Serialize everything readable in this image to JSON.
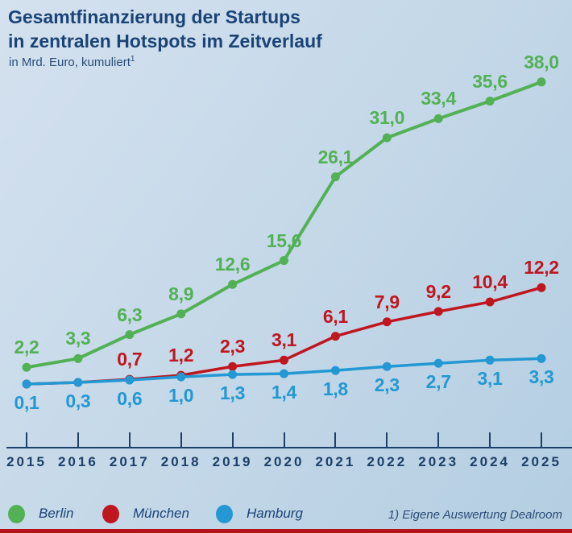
{
  "header": {
    "title": "Gesamtfinanzierung der Startups\nin zentralen Hotspots im Zeitverlauf",
    "subtitle": "in Mrd. Euro, kumuliert",
    "subtitle_superscript": "1"
  },
  "chart_data": {
    "type": "line",
    "title": "Gesamtfinanzierung der Startups in zentralen Hotspots im Zeitverlauf",
    "unit": "Mrd. Euro, kumuliert",
    "x": [
      "2015",
      "2016",
      "2017",
      "2018",
      "2019",
      "2020",
      "2021",
      "2022",
      "2023",
      "2024",
      "2025"
    ],
    "ylim": [
      0,
      40
    ],
    "grid": false,
    "legend_position": "bottom",
    "series": [
      {
        "name": "Berlin",
        "color": "#53b155",
        "values": [
          2.2,
          3.3,
          6.3,
          8.9,
          12.6,
          15.6,
          26.1,
          31.0,
          33.4,
          35.6,
          38.0
        ],
        "labels": [
          "2,2",
          "3,3",
          "6,3",
          "8,9",
          "12,6",
          "15,6",
          "26,1",
          "31,0",
          "33,4",
          "35,6",
          "38,0"
        ],
        "label_position": "above"
      },
      {
        "name": "München",
        "color": "#c0161f",
        "values": [
          0.1,
          0.3,
          0.7,
          1.2,
          2.3,
          3.1,
          6.1,
          7.9,
          9.2,
          10.4,
          12.2
        ],
        "labels": [
          "",
          "",
          "0,7",
          "1,2",
          "2,3",
          "3,1",
          "6,1",
          "7,9",
          "9,2",
          "10,4",
          "12,2"
        ],
        "label_position": "above"
      },
      {
        "name": "Hamburg",
        "color": "#2398d3",
        "values": [
          0.1,
          0.3,
          0.6,
          1.0,
          1.3,
          1.4,
          1.8,
          2.3,
          2.7,
          3.1,
          3.3
        ],
        "labels": [
          "0,1",
          "0,3",
          "0,6",
          "1,0",
          "1,3",
          "1,4",
          "1,8",
          "2,3",
          "2,7",
          "3,1",
          "3,3"
        ],
        "label_position": "below"
      }
    ]
  },
  "legend": {
    "items": [
      "Berlin",
      "München",
      "Hamburg"
    ]
  },
  "footnote": "1) Eigene Auswertung Dealroom",
  "colors": {
    "title_text": "#1b4476",
    "axis": "#1d4068",
    "background_top": "#d4e1ef",
    "background_bottom": "#b4cee2",
    "bottom_strip": "#b5121b"
  }
}
